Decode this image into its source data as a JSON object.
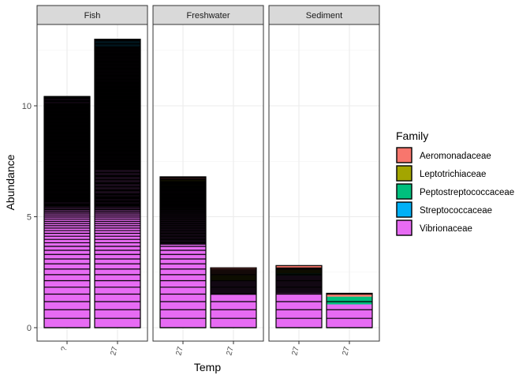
{
  "chart_data": {
    "type": "bar",
    "stacked": true,
    "facet_by": "sample type",
    "xlabel": "Temp",
    "ylabel": "Abundance",
    "ylim": [
      0,
      13.7
    ],
    "yticks": [
      0,
      5,
      10
    ],
    "grid": true,
    "legend": {
      "title": "Family",
      "placement": "right",
      "entries": [
        {
          "name": "Aeromonadaceae",
          "color": "#F8766D"
        },
        {
          "name": "Leptotrichiaceae",
          "color": "#A3A500"
        },
        {
          "name": "Peptostreptococcaceae",
          "color": "#00BF7D"
        },
        {
          "name": "Streptococcaceae",
          "color": "#00B0F6"
        },
        {
          "name": "Vibrionaceae",
          "color": "#E76BF3"
        }
      ]
    },
    "panels": [
      {
        "strip": "Fish",
        "bars": [
          {
            "x": "?",
            "segments": [
              {
                "family": "Vibrionaceae",
                "value": 10.42
              }
            ]
          },
          {
            "x": "27",
            "segments": [
              {
                "family": "Vibrionaceae",
                "value": 12.6
              },
              {
                "family": "Streptococcaceae",
                "value": 0.4
              }
            ]
          }
        ]
      },
      {
        "strip": "Freshwater",
        "bars": [
          {
            "x": "27",
            "segments": [
              {
                "family": "Vibrionaceae",
                "value": 6.25
              },
              {
                "family": "Peptostreptococcaceae",
                "value": 0.1
              },
              {
                "family": "Leptotrichiaceae",
                "value": 0.35
              },
              {
                "family": "Aeromonadaceae",
                "value": 0.1
              }
            ]
          },
          {
            "x": "27",
            "segments": [
              {
                "family": "Vibrionaceae",
                "value": 2.1
              },
              {
                "family": "Leptotrichiaceae",
                "value": 0.25
              },
              {
                "family": "Aeromonadaceae",
                "value": 0.35
              }
            ]
          }
        ]
      },
      {
        "strip": "Sediment",
        "bars": [
          {
            "x": "27",
            "segments": [
              {
                "family": "Vibrionaceae",
                "value": 2.35
              },
              {
                "family": "Peptostreptococcaceae",
                "value": 0.1
              },
              {
                "family": "Leptotrichiaceae",
                "value": 0.15
              },
              {
                "family": "Aeromonadaceae",
                "value": 0.2
              }
            ]
          },
          {
            "x": "27",
            "segments": [
              {
                "family": "Vibrionaceae",
                "value": 1.05
              },
              {
                "family": "Peptostreptococcaceae",
                "value": 0.35
              },
              {
                "family": "Aeromonadaceae",
                "value": 0.15
              }
            ]
          }
        ]
      }
    ]
  }
}
